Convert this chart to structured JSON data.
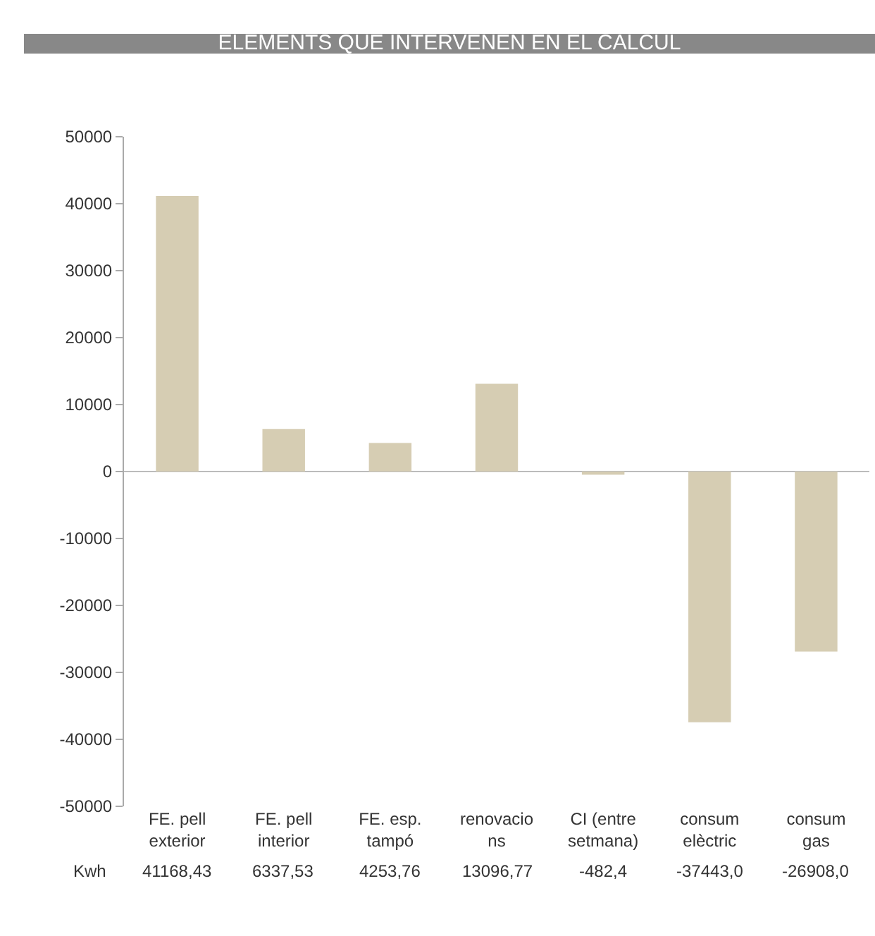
{
  "chart_data": {
    "type": "bar",
    "title": "ELEMENTS QUE INTERVENEN EN EL CALCUL",
    "categories": [
      "FE. pell\nexterior",
      "FE. pell\ninterior",
      "FE. esp.\ntampó",
      "renovacio\nns",
      "CI (entre\nsetmana)",
      "consum\nelèctric",
      "consum\ngas"
    ],
    "values": [
      41168.43,
      6337.53,
      4253.76,
      13096.77,
      -482.4,
      -37443.0,
      -26908.0
    ],
    "value_labels": [
      "41168,43",
      "6337,53",
      "4253,76",
      "13096,77",
      "-482,4",
      "-37443,0",
      "-26908,0"
    ],
    "color": "#d6cdb3",
    "ylim": [
      -50000,
      50000
    ],
    "yticks": [
      -50000,
      -40000,
      -30000,
      -20000,
      -10000,
      0,
      10000,
      20000,
      30000,
      40000,
      50000
    ],
    "annotations": [
      "Kwh"
    ]
  }
}
